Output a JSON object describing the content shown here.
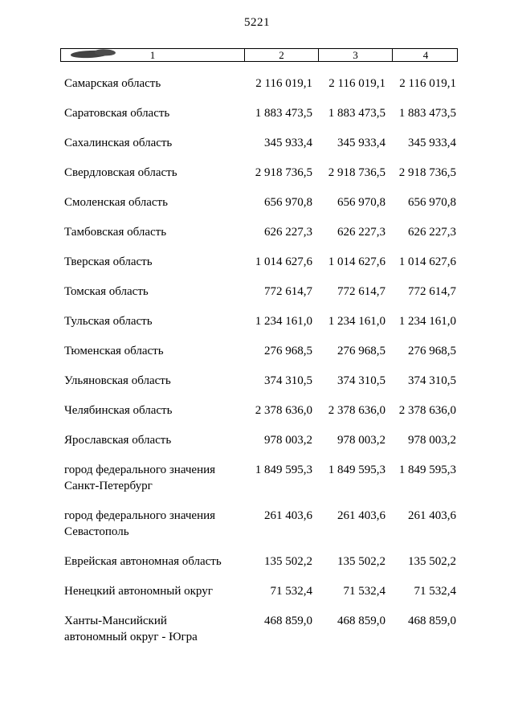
{
  "page": {
    "number": "5221"
  },
  "table": {
    "headers": [
      "1",
      "2",
      "3",
      "4"
    ],
    "rows": [
      {
        "label": "Самарская область",
        "values": [
          "2 116 019,1",
          "2 116 019,1",
          "2 116 019,1"
        ]
      },
      {
        "label": "Саратовская область",
        "values": [
          "1 883 473,5",
          "1 883 473,5",
          "1 883 473,5"
        ]
      },
      {
        "label": "Сахалинская область",
        "values": [
          "345 933,4",
          "345 933,4",
          "345 933,4"
        ]
      },
      {
        "label": "Свердловская область",
        "values": [
          "2 918 736,5",
          "2 918 736,5",
          "2 918 736,5"
        ]
      },
      {
        "label": "Смоленская область",
        "values": [
          "656 970,8",
          "656 970,8",
          "656 970,8"
        ]
      },
      {
        "label": "Тамбовская область",
        "values": [
          "626 227,3",
          "626 227,3",
          "626 227,3"
        ]
      },
      {
        "label": "Тверская область",
        "values": [
          "1 014 627,6",
          "1 014 627,6",
          "1 014 627,6"
        ]
      },
      {
        "label": "Томская область",
        "values": [
          "772 614,7",
          "772 614,7",
          "772 614,7"
        ]
      },
      {
        "label": "Тульская область",
        "values": [
          "1 234 161,0",
          "1 234 161,0",
          "1 234 161,0"
        ]
      },
      {
        "label": "Тюменская область",
        "values": [
          "276 968,5",
          "276 968,5",
          "276 968,5"
        ]
      },
      {
        "label": "Ульяновская область",
        "values": [
          "374 310,5",
          "374 310,5",
          "374 310,5"
        ]
      },
      {
        "label": "Челябинская область",
        "values": [
          "2 378 636,0",
          "2 378 636,0",
          "2 378 636,0"
        ]
      },
      {
        "label": "Ярославская область",
        "values": [
          "978 003,2",
          "978 003,2",
          "978 003,2"
        ]
      },
      {
        "label": "город федерального значения Санкт-Петербург",
        "values": [
          "1 849 595,3",
          "1 849 595,3",
          "1 849 595,3"
        ]
      },
      {
        "label": "город федерального значения Севастополь",
        "values": [
          "261 403,6",
          "261 403,6",
          "261 403,6"
        ]
      },
      {
        "label": "Еврейская автономная область",
        "values": [
          "135 502,2",
          "135 502,2",
          "135 502,2"
        ]
      },
      {
        "label": "Ненецкий автономный округ",
        "values": [
          "71 532,4",
          "71 532,4",
          "71 532,4"
        ]
      },
      {
        "label": "Ханты-Мансийский автономный округ - Югра",
        "values": [
          "468 859,0",
          "468 859,0",
          "468 859,0"
        ]
      }
    ]
  }
}
